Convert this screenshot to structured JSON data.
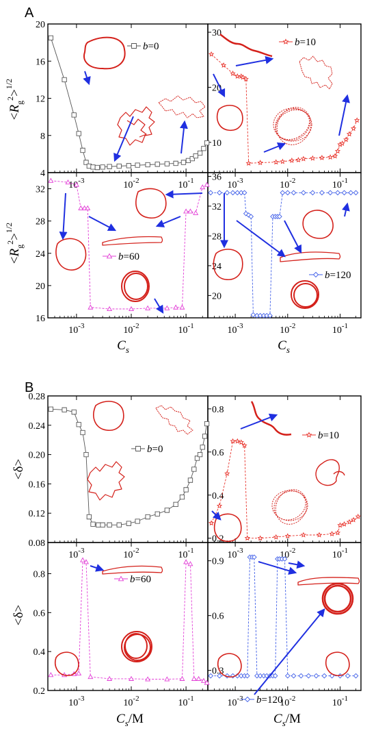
{
  "figure_labels": {
    "A": "A",
    "B": "B"
  },
  "axis_labels": {
    "A_bottom_left_x": "Cs",
    "A_bottom_right_x": "Cs",
    "B_bottom_left_x": "Cs/M",
    "B_bottom_right_x": "Cs/M",
    "A_y": "<Rg2>1/2",
    "B_y": "<δ>"
  },
  "colors": {
    "b0": "#555555",
    "b10": "#e8332b",
    "b60": "#e23cd6",
    "b120": "#3f5ee8",
    "arrow": "#1f2fe0",
    "conformation": "#d4201a"
  },
  "chart_data": [
    {
      "id": "A-b0",
      "type": "line",
      "panel": "A",
      "legend": "b=0",
      "marker": "square",
      "ylim": [
        4,
        20
      ],
      "yticks": [
        "4",
        "8",
        "12",
        "16",
        "20"
      ],
      "xscale": "log",
      "xlim": [
        0.0003,
        0.25
      ],
      "x": [
        0.00034,
        0.0006,
        0.0009,
        0.0011,
        0.0013,
        0.0015,
        0.0017,
        0.002,
        0.0024,
        0.003,
        0.004,
        0.006,
        0.009,
        0.013,
        0.02,
        0.03,
        0.045,
        0.065,
        0.09,
        0.11,
        0.13,
        0.15,
        0.18,
        0.21,
        0.24
      ],
      "y": [
        18.5,
        14.0,
        10.2,
        8.2,
        6.4,
        5.1,
        4.7,
        4.6,
        4.55,
        4.6,
        4.65,
        4.7,
        4.75,
        4.8,
        4.85,
        4.9,
        4.95,
        5.0,
        5.1,
        5.3,
        5.5,
        5.8,
        6.1,
        6.6,
        7.2
      ]
    },
    {
      "id": "A-b10",
      "type": "line",
      "panel": "A",
      "legend": "b=10",
      "marker": "star",
      "ylim": [
        4.5,
        31.5
      ],
      "yticks": [
        "10",
        "20",
        "30"
      ],
      "xscale": "log",
      "xlim": [
        0.0003,
        0.25
      ],
      "x": [
        0.00035,
        0.0006,
        0.0009,
        0.0011,
        0.0013,
        0.0014,
        0.0016,
        0.0018,
        0.003,
        0.006,
        0.008,
        0.012,
        0.016,
        0.02,
        0.03,
        0.045,
        0.065,
        0.08,
        0.09,
        0.1,
        0.11,
        0.13,
        0.15,
        0.18,
        0.21
      ],
      "y": [
        26,
        24,
        22.5,
        22.0,
        22.0,
        21.8,
        21.5,
        6.2,
        6.3,
        6.4,
        6.5,
        6.7,
        6.8,
        7.0,
        7.1,
        7.2,
        7.3,
        7.5,
        8.4,
        9.6,
        9.8,
        10.5,
        11.5,
        12.5,
        14.0
      ]
    },
    {
      "id": "A-b60",
      "type": "line",
      "panel": "A",
      "legend": "b=60",
      "marker": "triangle",
      "ylim": [
        16,
        34
      ],
      "yticks": [
        "16",
        "20",
        "24",
        "28",
        "32"
      ],
      "xscale": "log",
      "xlim": [
        0.0003,
        0.25
      ],
      "xticks": [
        "10-3",
        "10-2",
        "10-1"
      ],
      "x": [
        0.00034,
        0.0007,
        0.001,
        0.0012,
        0.0014,
        0.0016,
        0.0018,
        0.004,
        0.01,
        0.02,
        0.045,
        0.065,
        0.085,
        0.1,
        0.12,
        0.15,
        0.2,
        0.24
      ],
      "y": [
        33.0,
        32.8,
        32.5,
        29.6,
        29.6,
        29.6,
        17.3,
        17.1,
        17.1,
        17.2,
        17.2,
        17.3,
        17.3,
        29.2,
        29.2,
        29.0,
        32.2,
        32.5
      ]
    },
    {
      "id": "A-b120",
      "type": "line",
      "panel": "A",
      "legend": "b=120",
      "marker": "diamond",
      "ylim": [
        17,
        36.5
      ],
      "yticks": [
        "20",
        "24",
        "28",
        "32",
        "36"
      ],
      "xscale": "log",
      "xlim": [
        0.0003,
        0.25
      ],
      "xticks": [
        "10-3",
        "10-2",
        "10-1"
      ],
      "x": [
        0.00034,
        0.0005,
        0.0007,
        0.0009,
        0.0011,
        0.0013,
        0.0015,
        0.0016,
        0.0018,
        0.002,
        0.0022,
        0.0026,
        0.003,
        0.0035,
        0.004,
        0.0046,
        0.0052,
        0.0058,
        0.0064,
        0.007,
        0.008,
        0.01,
        0.013,
        0.02,
        0.03,
        0.045,
        0.065,
        0.09,
        0.12,
        0.16,
        0.2
      ],
      "y": [
        33.8,
        33.8,
        33.8,
        33.8,
        33.8,
        33.8,
        33.8,
        31.0,
        30.8,
        30.6,
        17.4,
        17.3,
        17.3,
        17.3,
        17.3,
        17.3,
        30.6,
        30.6,
        30.6,
        30.6,
        33.8,
        33.8,
        33.8,
        33.8,
        33.8,
        33.8,
        33.8,
        33.8,
        33.8,
        33.8,
        33.8
      ]
    },
    {
      "id": "B-b0",
      "type": "line",
      "panel": "B",
      "legend": "b=0",
      "marker": "square",
      "ylim": [
        0.08,
        0.28
      ],
      "yticks": [
        "0.08",
        "0.12",
        "0.16",
        "0.20",
        "0.24",
        "0.28"
      ],
      "xscale": "log",
      "xlim": [
        0.0003,
        0.25
      ],
      "x": [
        0.00034,
        0.0006,
        0.0009,
        0.0011,
        0.0013,
        0.0015,
        0.0017,
        0.002,
        0.0025,
        0.003,
        0.004,
        0.006,
        0.009,
        0.013,
        0.02,
        0.03,
        0.045,
        0.065,
        0.085,
        0.1,
        0.12,
        0.14,
        0.16,
        0.18,
        0.2,
        0.22,
        0.24
      ],
      "y": [
        0.262,
        0.261,
        0.258,
        0.241,
        0.23,
        0.2,
        0.115,
        0.105,
        0.104,
        0.104,
        0.104,
        0.104,
        0.106,
        0.109,
        0.115,
        0.119,
        0.124,
        0.132,
        0.142,
        0.152,
        0.165,
        0.18,
        0.195,
        0.2,
        0.21,
        0.225,
        0.242
      ]
    },
    {
      "id": "B-b10",
      "type": "line",
      "panel": "B",
      "legend": "b=10",
      "marker": "star",
      "ylim": [
        0.18,
        0.86
      ],
      "yticks": [
        "0.2",
        "0.4",
        "0.6",
        "0.8"
      ],
      "xscale": "log",
      "xlim": [
        0.0003,
        0.25
      ],
      "x": [
        0.00035,
        0.0005,
        0.0007,
        0.0009,
        0.0011,
        0.0013,
        0.0015,
        0.0017,
        0.003,
        0.006,
        0.01,
        0.02,
        0.04,
        0.07,
        0.09,
        0.1,
        0.12,
        0.15,
        0.18,
        0.22
      ],
      "y": [
        0.27,
        0.35,
        0.5,
        0.65,
        0.65,
        0.645,
        0.63,
        0.2,
        0.2,
        0.205,
        0.21,
        0.215,
        0.215,
        0.22,
        0.225,
        0.26,
        0.265,
        0.275,
        0.285,
        0.3
      ]
    },
    {
      "id": "B-b60",
      "type": "line",
      "panel": "B",
      "legend": "b=60",
      "marker": "triangle",
      "ylim": [
        0.2,
        0.96
      ],
      "yticks": [
        "0.2",
        "0.4",
        "0.6",
        "0.8"
      ],
      "xscale": "log",
      "xlim": [
        0.0003,
        0.25
      ],
      "xticks": [
        "10-3",
        "10-2",
        "10-1"
      ],
      "x": [
        0.00034,
        0.0006,
        0.0009,
        0.0011,
        0.0013,
        0.0015,
        0.0018,
        0.004,
        0.01,
        0.02,
        0.045,
        0.085,
        0.1,
        0.12,
        0.14,
        0.17,
        0.21,
        0.24
      ],
      "y": [
        0.28,
        0.28,
        0.285,
        0.288,
        0.87,
        0.86,
        0.27,
        0.26,
        0.26,
        0.258,
        0.258,
        0.26,
        0.86,
        0.85,
        0.26,
        0.26,
        0.25,
        0.24
      ],
      "note_series": ""
    },
    {
      "id": "B-b120",
      "type": "line",
      "panel": "B",
      "legend": "b=120",
      "marker": "diamond",
      "ylim": [
        0.19,
        1.0
      ],
      "yticks": [
        "0.3",
        "0.6",
        "0.9"
      ],
      "xscale": "log",
      "xlim": [
        0.0003,
        0.25
      ],
      "xticks": [
        "10-3",
        "10-2",
        "10-1"
      ],
      "x": [
        0.00034,
        0.0005,
        0.0007,
        0.0009,
        0.0011,
        0.0013,
        0.0015,
        0.0017,
        0.0019,
        0.0021,
        0.0023,
        0.0026,
        0.003,
        0.0035,
        0.004,
        0.0046,
        0.0052,
        0.0058,
        0.0064,
        0.007,
        0.0078,
        0.0088,
        0.01,
        0.013,
        0.018,
        0.025,
        0.035,
        0.05,
        0.07,
        0.1,
        0.14,
        0.2
      ],
      "y": [
        0.27,
        0.27,
        0.27,
        0.27,
        0.27,
        0.27,
        0.27,
        0.27,
        0.92,
        0.92,
        0.92,
        0.27,
        0.27,
        0.27,
        0.27,
        0.27,
        0.27,
        0.27,
        0.91,
        0.91,
        0.91,
        0.91,
        0.27,
        0.27,
        0.27,
        0.27,
        0.27,
        0.27,
        0.27,
        0.27,
        0.27,
        0.27
      ]
    }
  ]
}
